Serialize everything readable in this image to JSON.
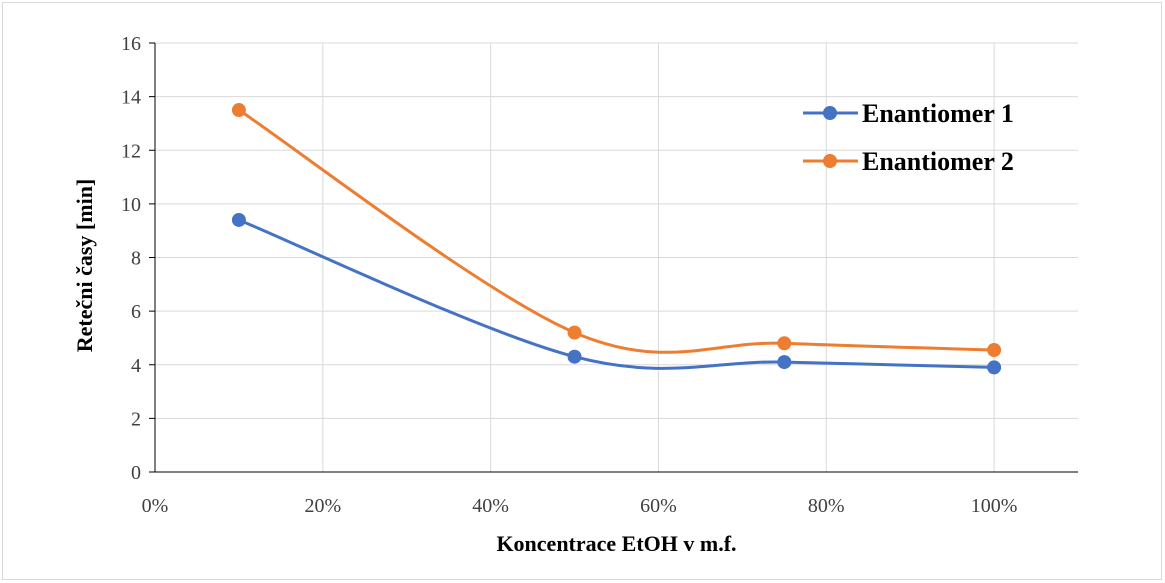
{
  "chart_data": {
    "type": "line",
    "title": "",
    "xlabel": "Koncentrace EtOH v m.f.",
    "ylabel": "Retečni časy [min]",
    "xlim": [
      0,
      110
    ],
    "ylim": [
      0,
      16
    ],
    "xticks": [
      0,
      20,
      40,
      60,
      80,
      100
    ],
    "xtick_labels": [
      "0%",
      "20%",
      "40%",
      "60%",
      "80%",
      "100%"
    ],
    "yticks": [
      0,
      2,
      4,
      6,
      8,
      10,
      12,
      14,
      16
    ],
    "ytick_labels": [
      "0",
      "2",
      "4",
      "6",
      "8",
      "10",
      "12",
      "14",
      "16"
    ],
    "grid": true,
    "legend_position": "top-right",
    "smooth": true,
    "series": [
      {
        "name": "Enantiomer 1",
        "color": "#4472c4",
        "x": [
          10,
          50,
          75,
          100
        ],
        "y": [
          9.4,
          4.3,
          4.1,
          3.9
        ]
      },
      {
        "name": "Enantiomer 2",
        "color": "#ed7d31",
        "x": [
          10,
          50,
          75,
          100
        ],
        "y": [
          13.5,
          5.2,
          4.8,
          4.55
        ]
      }
    ]
  }
}
